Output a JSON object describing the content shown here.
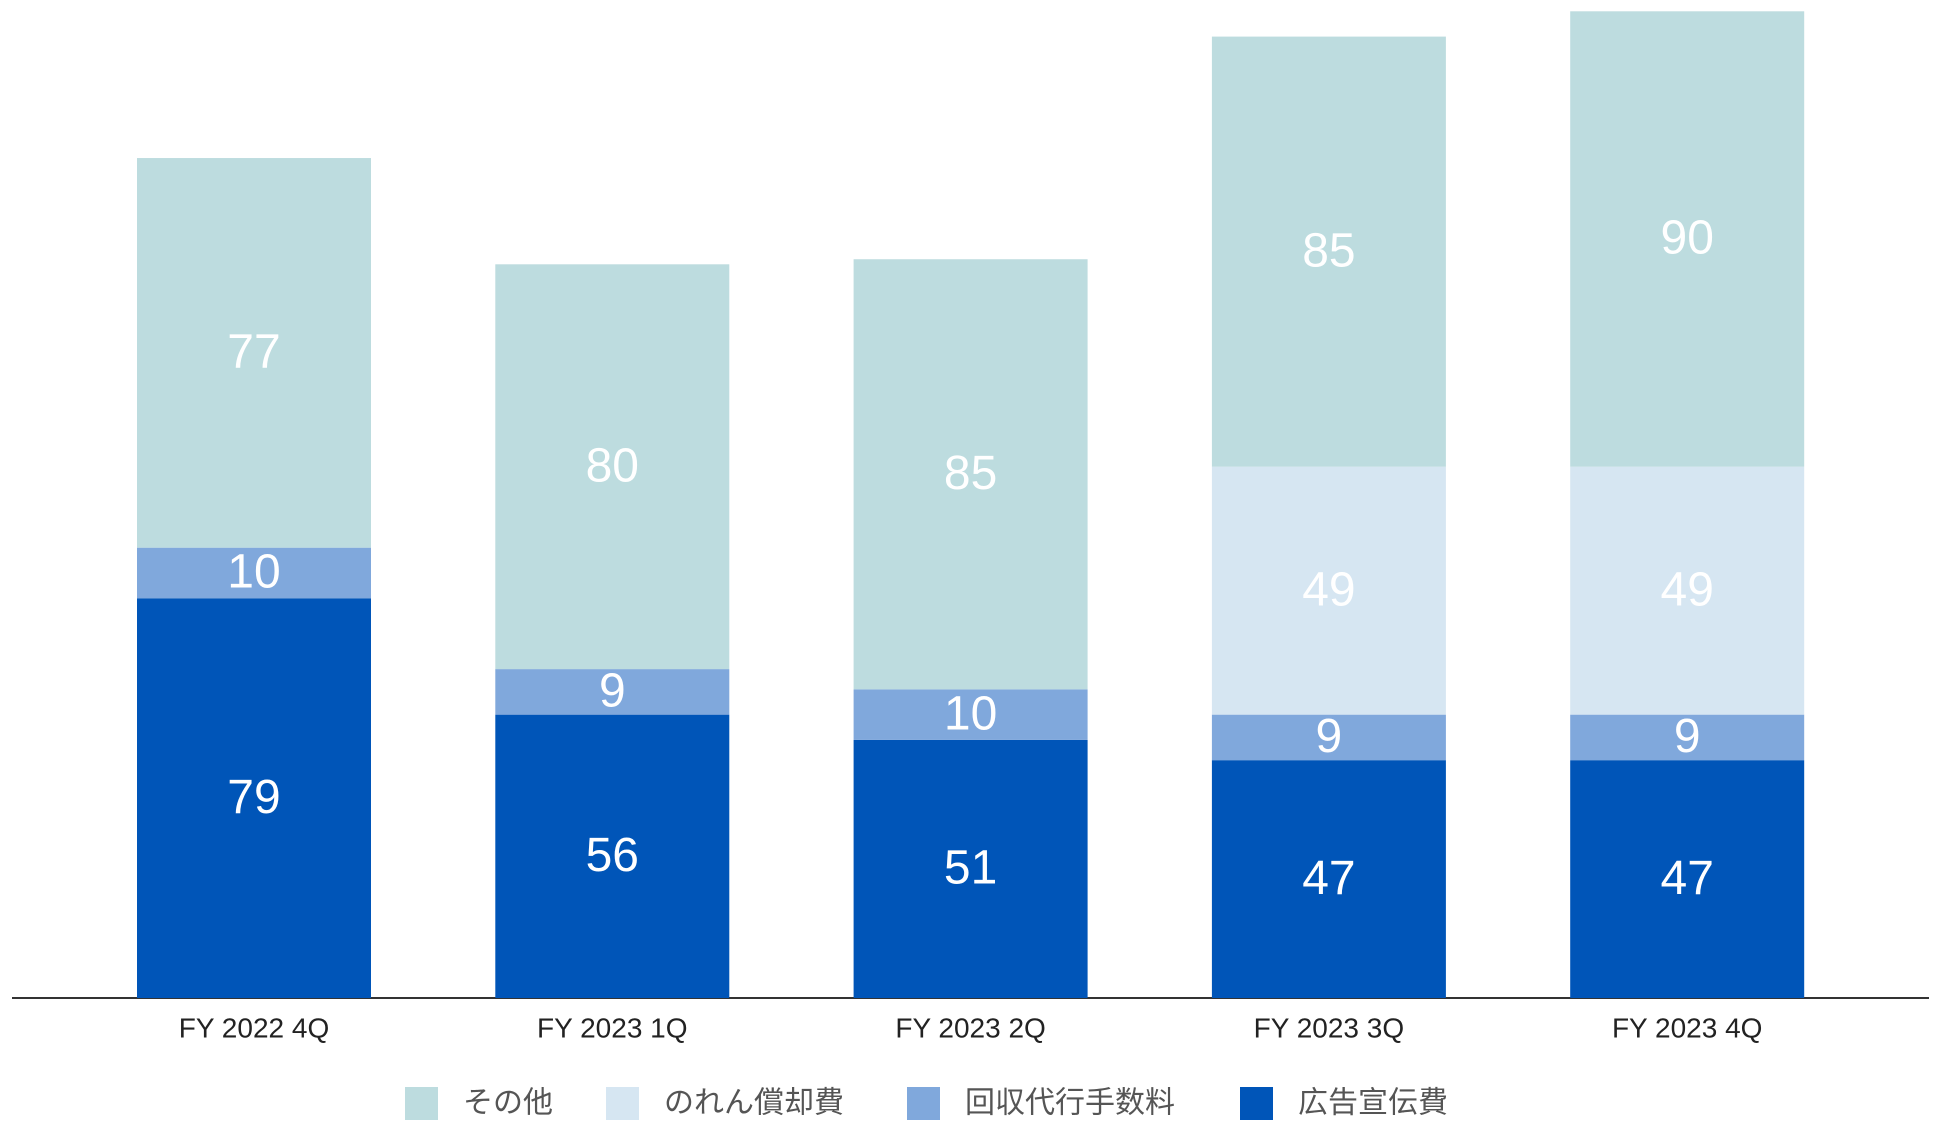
{
  "chart_data": {
    "type": "stacked_bar",
    "categories": [
      "FY 2022 4Q",
      "FY 2023 1Q",
      "FY 2023 2Q",
      "FY 2023 3Q",
      "FY 2023 4Q"
    ],
    "series": [
      {
        "name": "広告宣伝費",
        "color": "#0055b8",
        "values": [
          79,
          56,
          51,
          47,
          47
        ]
      },
      {
        "name": "回収代行手数料",
        "color": "#80a8dc",
        "values": [
          10,
          9,
          10,
          9,
          9
        ]
      },
      {
        "name": "のれん償却費",
        "color": "#d6e6f2",
        "values": [
          null,
          null,
          null,
          49,
          49
        ]
      },
      {
        "name": "その他",
        "color": "#bddcdf",
        "values": [
          77,
          80,
          85,
          85,
          90
        ]
      }
    ],
    "legend": "bottom"
  }
}
